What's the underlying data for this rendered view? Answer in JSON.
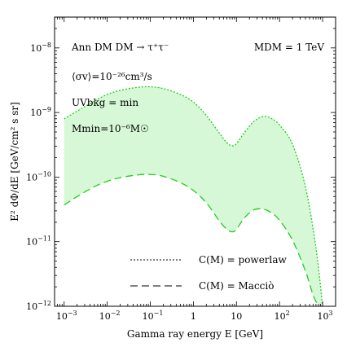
{
  "chart_data": {
    "type": "area",
    "title": "",
    "xlabel": "Gamma ray energy E [GeV]",
    "ylabel": "E² dΦ/dE [GeV/cm² s sr]",
    "x_scale": "log",
    "y_scale": "log",
    "xlim": [
      0.0006,
      2000
    ],
    "ylim": [
      1e-12,
      3e-08
    ],
    "x_ticks": [
      {
        "value": 0.001,
        "base": "10",
        "exp": "−3"
      },
      {
        "value": 0.01,
        "base": "10",
        "exp": "−2"
      },
      {
        "value": 0.1,
        "base": "10",
        "exp": "−1"
      },
      {
        "value": 1,
        "base": "1",
        "exp": ""
      },
      {
        "value": 10,
        "base": "10",
        "exp": ""
      },
      {
        "value": 100,
        "base": "10",
        "exp": "2"
      },
      {
        "value": 1000,
        "base": "10",
        "exp": "3"
      }
    ],
    "y_ticks": [
      {
        "value": 1e-12,
        "base": "10",
        "exp": "−12"
      },
      {
        "value": 1e-11,
        "base": "10",
        "exp": "−11"
      },
      {
        "value": 1e-10,
        "base": "10",
        "exp": "−10"
      },
      {
        "value": 1e-09,
        "base": "10",
        "exp": "−9"
      },
      {
        "value": 1e-08,
        "base": "10",
        "exp": "−8"
      }
    ],
    "annotations": {
      "channel": "Ann DM DM → τ⁺τ⁻",
      "cross_section": "⟨σv⟩=10⁻²⁶cm³/s",
      "uv_background": "UVbkg = min",
      "m_min": "Mmin=10⁻⁶M☉",
      "dm_mass": "MDM = 1 TeV"
    },
    "fill_color": "#d6f8d6",
    "series": [
      {
        "name": "C(M) = powerlaw",
        "style": "dotted",
        "color": "#22cc22",
        "x": [
          0.001,
          0.002,
          0.005,
          0.01,
          0.02,
          0.05,
          0.1,
          0.2,
          0.5,
          1,
          2,
          4,
          6,
          8,
          10,
          15,
          25,
          40,
          60,
          100,
          200,
          400,
          700,
          1000
        ],
        "y": [
          8e-10,
          1.05e-09,
          1.5e-09,
          1.9e-09,
          2.2e-09,
          2.45e-09,
          2.5e-09,
          2.35e-09,
          1.9e-09,
          1.45e-09,
          9e-10,
          4.8e-10,
          3.4e-10,
          3.05e-10,
          3.3e-10,
          4.8e-10,
          7.2e-10,
          8.6e-10,
          8.3e-10,
          6.4e-10,
          3.2e-10,
          7e-11,
          8e-12,
          1e-12
        ]
      },
      {
        "name": "C(M) = Macciò",
        "style": "dashed",
        "color": "#22cc22",
        "x": [
          0.001,
          0.002,
          0.005,
          0.01,
          0.02,
          0.05,
          0.1,
          0.2,
          0.5,
          1,
          2,
          4,
          6,
          8,
          10,
          15,
          25,
          40,
          60,
          100,
          200,
          400,
          600,
          800
        ],
        "y": [
          3.7e-11,
          5e-11,
          7.1e-11,
          8.6e-11,
          9.8e-11,
          1.08e-10,
          1.1e-10,
          1.03e-10,
          8.2e-11,
          6.2e-11,
          4e-11,
          2.1e-11,
          1.55e-11,
          1.42e-11,
          1.55e-11,
          2.3e-11,
          3.1e-11,
          3.2e-11,
          2.9e-11,
          2.15e-11,
          1.05e-11,
          3.5e-12,
          1.5e-12,
          1e-12
        ]
      }
    ],
    "legend": {
      "placement": "bottom-center",
      "entries": [
        {
          "label": "C(M) = powerlaw",
          "style": "dotted"
        },
        {
          "label": "C(M) = Macciò",
          "style": "dashed"
        }
      ]
    }
  }
}
